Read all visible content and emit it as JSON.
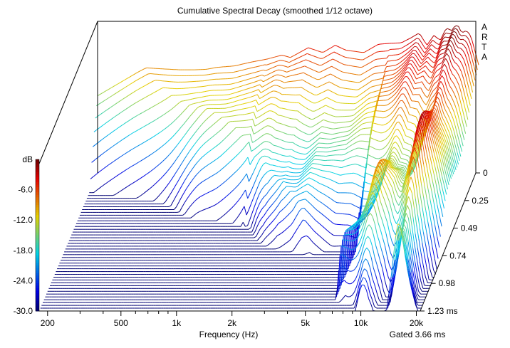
{
  "chart_data": {
    "type": "waterfall",
    "title": "Cumulative Spectral Decay (smoothed 1/12 octave)",
    "xlabel": "Frequency (Hz)",
    "zlabel": "dB",
    "xscale": "log",
    "xlim": [
      180,
      21000
    ],
    "zlim": [
      -30,
      0
    ],
    "x_ticks": [
      {
        "value": 200,
        "label": "200"
      },
      {
        "value": 500,
        "label": "500"
      },
      {
        "value": 1000,
        "label": "1k"
      },
      {
        "value": 2000,
        "label": "2k"
      },
      {
        "value": 5000,
        "label": "5k"
      },
      {
        "value": 10000,
        "label": "10k"
      },
      {
        "value": 20000,
        "label": "20k"
      }
    ],
    "z_ticks": [
      "dB",
      "-6.0",
      "-12.0",
      "-18.0",
      "-24.0",
      "-30.0"
    ],
    "time_ticks": [
      "0",
      "0.25",
      "0.49",
      "0.74",
      "0.98",
      "1.23 ms"
    ],
    "time_range_ms": [
      0,
      1.23
    ],
    "gate_label": "Gated 3.66 ms",
    "logo": "A R T A",
    "slice_count": 50,
    "first_slice_response": {
      "freq_hz": [
        300,
        400,
        500,
        600,
        700,
        800,
        1000,
        1200,
        1500,
        1800,
        2000,
        2500,
        3000,
        3500,
        4000,
        5000,
        6000,
        7000,
        8000,
        9000,
        10000,
        11000,
        12000,
        13000,
        14000,
        15000,
        16000,
        17000,
        18000,
        19000,
        20000,
        21000
      ],
      "level_db": [
        -8.5,
        -8.8,
        -9.0,
        -9.0,
        -8.9,
        -8.5,
        -8.2,
        -7.5,
        -6.8,
        -6.0,
        -6.5,
        -4.5,
        -5.5,
        -4.0,
        -5.0,
        -5.5,
        -3.8,
        -3.6,
        -3.5,
        -2.5,
        -1.5,
        -4.0,
        -2.0,
        -3.0,
        -0.5,
        -1.0,
        0.5,
        -1.5,
        -1.0,
        -2.0,
        -5.0,
        -8.0
      ]
    }
  }
}
